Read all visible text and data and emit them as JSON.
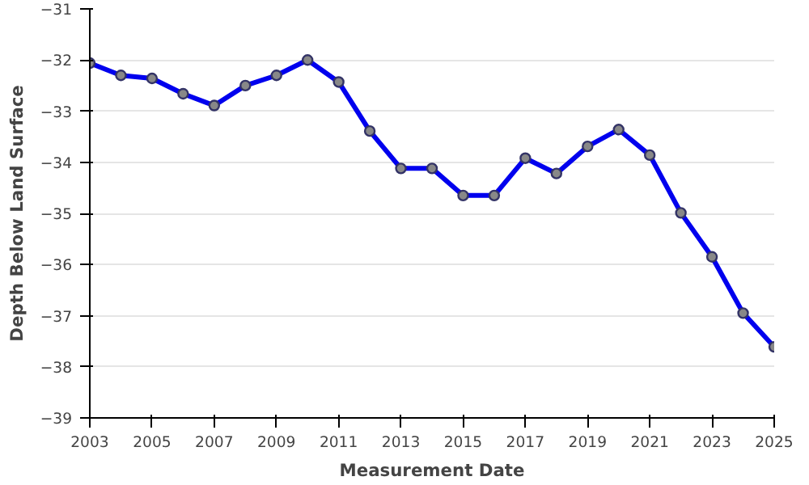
{
  "chart_data": {
    "type": "line",
    "xlabel": "Measurement Date",
    "ylabel": "Depth Below Land Surface",
    "x": [
      2003,
      2004,
      2005,
      2006,
      2007,
      2008,
      2009,
      2010,
      2011,
      2012,
      2013,
      2014,
      2015,
      2016,
      2017,
      2018,
      2019,
      2020,
      2021,
      2022,
      2023,
      2024,
      2025
    ],
    "series": [
      {
        "color": "#0000ee",
        "values": [
          -32.06,
          -32.3,
          -32.36,
          -32.66,
          -32.89,
          -32.5,
          -32.3,
          -32.0,
          -32.43,
          -33.39,
          -34.12,
          -34.12,
          -34.65,
          -34.65,
          -33.92,
          -34.22,
          -33.69,
          -33.36,
          -33.86,
          -34.99,
          -35.85,
          -36.95,
          -37.61
        ]
      }
    ],
    "xlim": [
      2003,
      2025
    ],
    "xticks": [
      2003,
      2005,
      2007,
      2009,
      2011,
      2013,
      2015,
      2017,
      2019,
      2021,
      2023,
      2025
    ],
    "ylim": [
      -39,
      -31
    ],
    "yticks": [
      -39,
      -38,
      -37,
      -36,
      -35,
      -34,
      -33,
      -32,
      -31
    ],
    "grid": "y",
    "marker": "circle",
    "line_style": "solid"
  }
}
